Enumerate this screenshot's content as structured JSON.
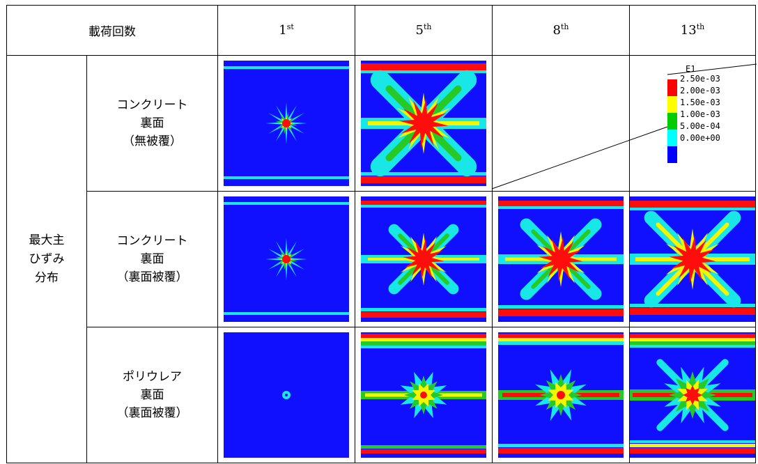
{
  "table": {
    "header_label": "載荷回数",
    "columns": [
      {
        "num": "1",
        "suffix": "st"
      },
      {
        "num": "5",
        "suffix": "th"
      },
      {
        "num": "8",
        "suffix": "th"
      },
      {
        "num": "13",
        "suffix": "th"
      }
    ],
    "side_label_lines": [
      "最大主",
      "ひずみ",
      "分布"
    ],
    "rows": [
      {
        "label_lines": [
          "コンクリート",
          "裏面",
          "（無被覆）"
        ],
        "images": [
          "1st",
          "5th",
          "",
          "legend"
        ]
      },
      {
        "label_lines": [
          "コンクリート",
          "裏面",
          "（裏面被覆）"
        ],
        "images": [
          "1st",
          "5th",
          "8th",
          "13th"
        ]
      },
      {
        "label_lines": [
          "ポリウレア",
          "裏面",
          "（裏面被覆）"
        ],
        "images": [
          "1st",
          "5th",
          "8th",
          "13th"
        ]
      }
    ]
  },
  "legend": {
    "title": "E1",
    "entries": [
      {
        "label": "2.50e-03",
        "color": "#ff0000"
      },
      {
        "label": "2.00e-03",
        "color": "#ffff00"
      },
      {
        "label": "1.50e-03",
        "color": "#00cc00"
      },
      {
        "label": "1.00e-03",
        "color": "#00ffff"
      },
      {
        "label": "5.00e-04",
        "color": "#0000ff"
      },
      {
        "label": "0.00e+00",
        "color": ""
      }
    ]
  },
  "colors": {
    "blue": "#1010ff",
    "cyan": "#19e6e6",
    "green": "#26c926",
    "yellow": "#f5f500",
    "red": "#ff0d0d"
  }
}
